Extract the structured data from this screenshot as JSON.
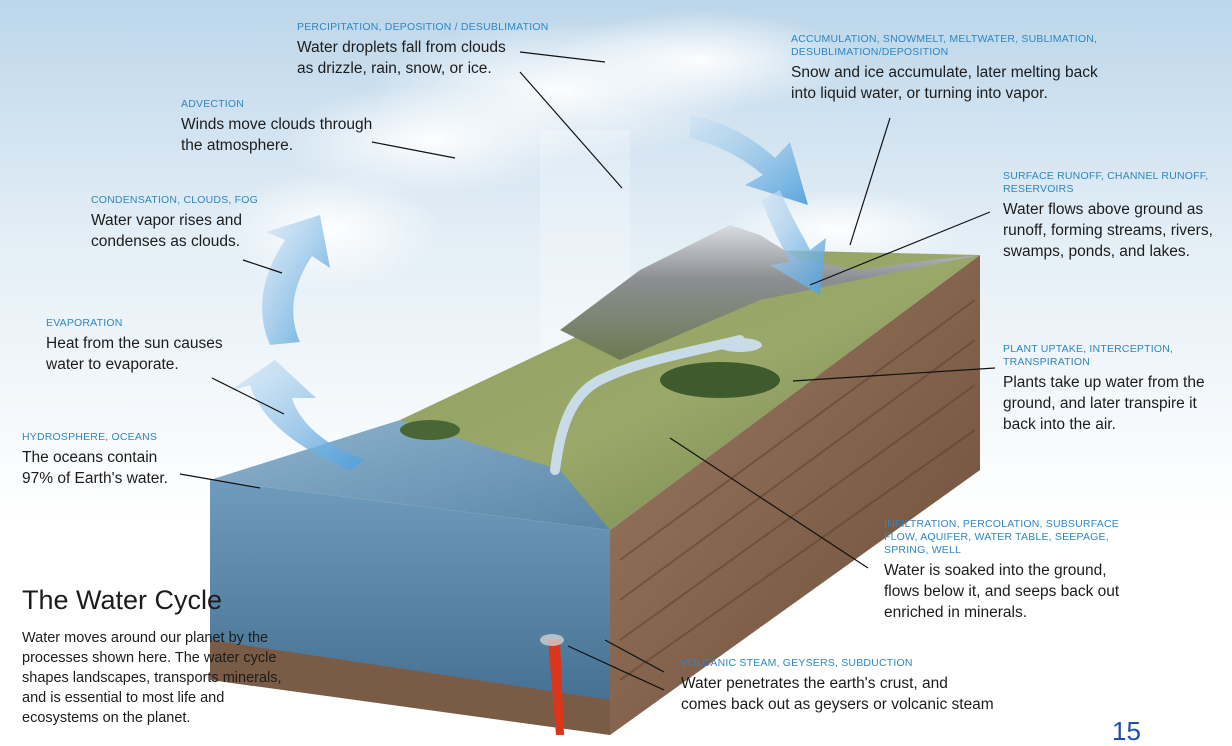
{
  "title": "The Water Cycle",
  "intro": "Water moves around our planet by the processes shown here. The water cycle shapes landscapes, transports minerals, and is essential to most life and ecosystems on the planet.",
  "page_number": "15",
  "colors": {
    "heading": "#2f86c2",
    "arrow": "#4f9fdc",
    "ocean": "#5e8fb2",
    "soil": "#7a5b45",
    "lava": "#d9361c"
  },
  "labels": {
    "precipitation": {
      "heading": "PERCIPITATION, DEPOSITION / DESUBLIMATION",
      "lines": [
        "Water droplets fall from clouds",
        "as drizzle, rain, snow, or ice."
      ]
    },
    "accumulation": {
      "heading_lines": [
        "ACCUMULATION, SNOWMELT, MELTWATER, SUBLIMATION,",
        "DESUBLIMATION/DEPOSITION"
      ],
      "lines": [
        "Snow and ice accumulate, later melting back",
        "into liquid water, or turning into vapor."
      ]
    },
    "advection": {
      "heading": "ADVECTION",
      "lines": [
        "Winds move clouds through",
        "the atmosphere."
      ]
    },
    "condensation": {
      "heading": "CONDENSATION, CLOUDS, FOG",
      "lines": [
        "Water vapor rises and",
        "condenses as clouds."
      ]
    },
    "runoff": {
      "heading_lines": [
        "SURFACE RUNOFF, CHANNEL RUNOFF,",
        "RESERVOIRS"
      ],
      "lines": [
        "Water flows above ground as",
        "runoff, forming streams, rivers,",
        "swamps, ponds, and lakes."
      ]
    },
    "evaporation": {
      "heading": "EVAPORATION",
      "lines": [
        "Heat from the sun causes",
        "water to evaporate."
      ]
    },
    "plant": {
      "heading_lines": [
        "PLANT UPTAKE, INTERCEPTION,",
        "TRANSPIRATION"
      ],
      "lines": [
        "Plants take up water from the",
        "ground, and later transpire it",
        "back into the air."
      ]
    },
    "hydrosphere": {
      "heading": "HYDROSPHERE, OCEANS",
      "lines": [
        "The oceans contain",
        "97% of Earth's water."
      ]
    },
    "infiltration": {
      "heading_lines": [
        "INFILTRATION, PERCOLATION, SUBSURFACE",
        "FLOW, AQUIFER, WATER TABLE, SEEPAGE,",
        "SPRING, WELL"
      ],
      "lines": [
        "Water is soaked into the ground,",
        "flows below it, and seeps back out",
        "enriched in minerals."
      ]
    },
    "volcanic": {
      "heading": "VOLCANIC STEAM, GEYSERS, SUBDUCTION",
      "lines": [
        "Water penetrates the earth's crust, and",
        "comes back out as geysers or volcanic steam"
      ]
    }
  }
}
